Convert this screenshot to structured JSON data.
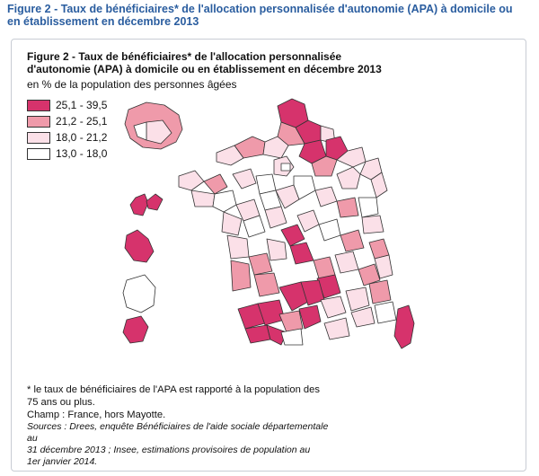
{
  "outer_title": "Figure 2 - Taux de bénéficiaires* de l'allocation personnalisée d'autonomie (APA) à domicile ou en établissement en décembre 2013",
  "figure": {
    "title_line1": "Figure 2 - Taux de bénéficiaires* de l'allocation personnalisée",
    "title_line2": "d'autonomie (APA) à domicile ou en établissement en décembre 2013",
    "subtitle": "en % de la population des personnes âgées"
  },
  "legend": [
    {
      "label": "25,1 - 39,5",
      "color": "#d6336c"
    },
    {
      "label": "21,2 - 25,1",
      "color": "#ef9aaa"
    },
    {
      "label": "18,0 - 21,2",
      "color": "#fbe0e8"
    },
    {
      "label": "13,0 - 18,0",
      "color": "#ffffff"
    }
  ],
  "colors": {
    "c1": "#d6336c",
    "c2": "#ef9aaa",
    "c3": "#fbe0e8",
    "c4": "#ffffff",
    "border": "#333333"
  },
  "notes": {
    "line1": "* le taux de bénéficiaires de l'APA est rapporté à la population des",
    "line2": "75 ans ou plus.",
    "line3": "Champ : France, hors Mayotte.",
    "src1": "Sources : Drees, enquête Bénéficiaires de l'aide sociale départementale au",
    "src2": "31 décembre 2013 ; Insee, estimations provisoires de population au",
    "src3": "1er janvier 2014."
  }
}
